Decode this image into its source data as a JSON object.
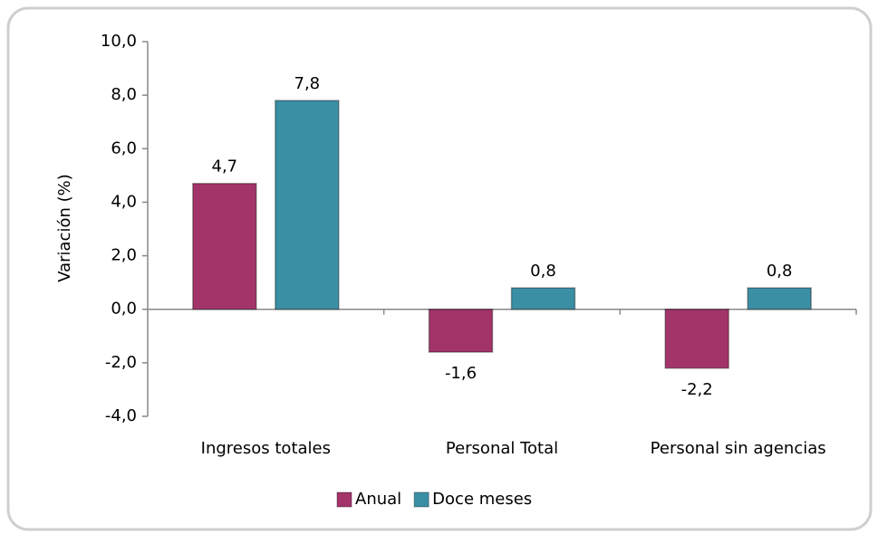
{
  "chart_data": {
    "type": "bar",
    "y_label": "Variación (%)",
    "categories": [
      "Ingresos totales",
      "Personal Total",
      "Personal sin agencias"
    ],
    "series": [
      {
        "name": "Anual",
        "color": "#a3346a",
        "values": [
          4.7,
          -1.6,
          -2.2
        ],
        "value_labels": [
          "4,7",
          "-1,6",
          "-2,2"
        ]
      },
      {
        "name": "Doce meses",
        "color": "#3a8fa5",
        "values": [
          7.8,
          0.8,
          0.8
        ],
        "value_labels": [
          "7,8",
          "0,8",
          "0,8"
        ]
      }
    ],
    "ylim": [
      -4,
      10
    ],
    "yticks": [
      {
        "value": -4,
        "label": "-4,0"
      },
      {
        "value": -2,
        "label": "-2,0"
      },
      {
        "value": 0,
        "label": "0,0"
      },
      {
        "value": 2,
        "label": "2,0"
      },
      {
        "value": 4,
        "label": "4,0"
      },
      {
        "value": 6,
        "label": "6,0"
      },
      {
        "value": 8,
        "label": "8,0"
      },
      {
        "value": 10,
        "label": "10,0"
      }
    ],
    "grid": false,
    "legend": "bottom"
  }
}
